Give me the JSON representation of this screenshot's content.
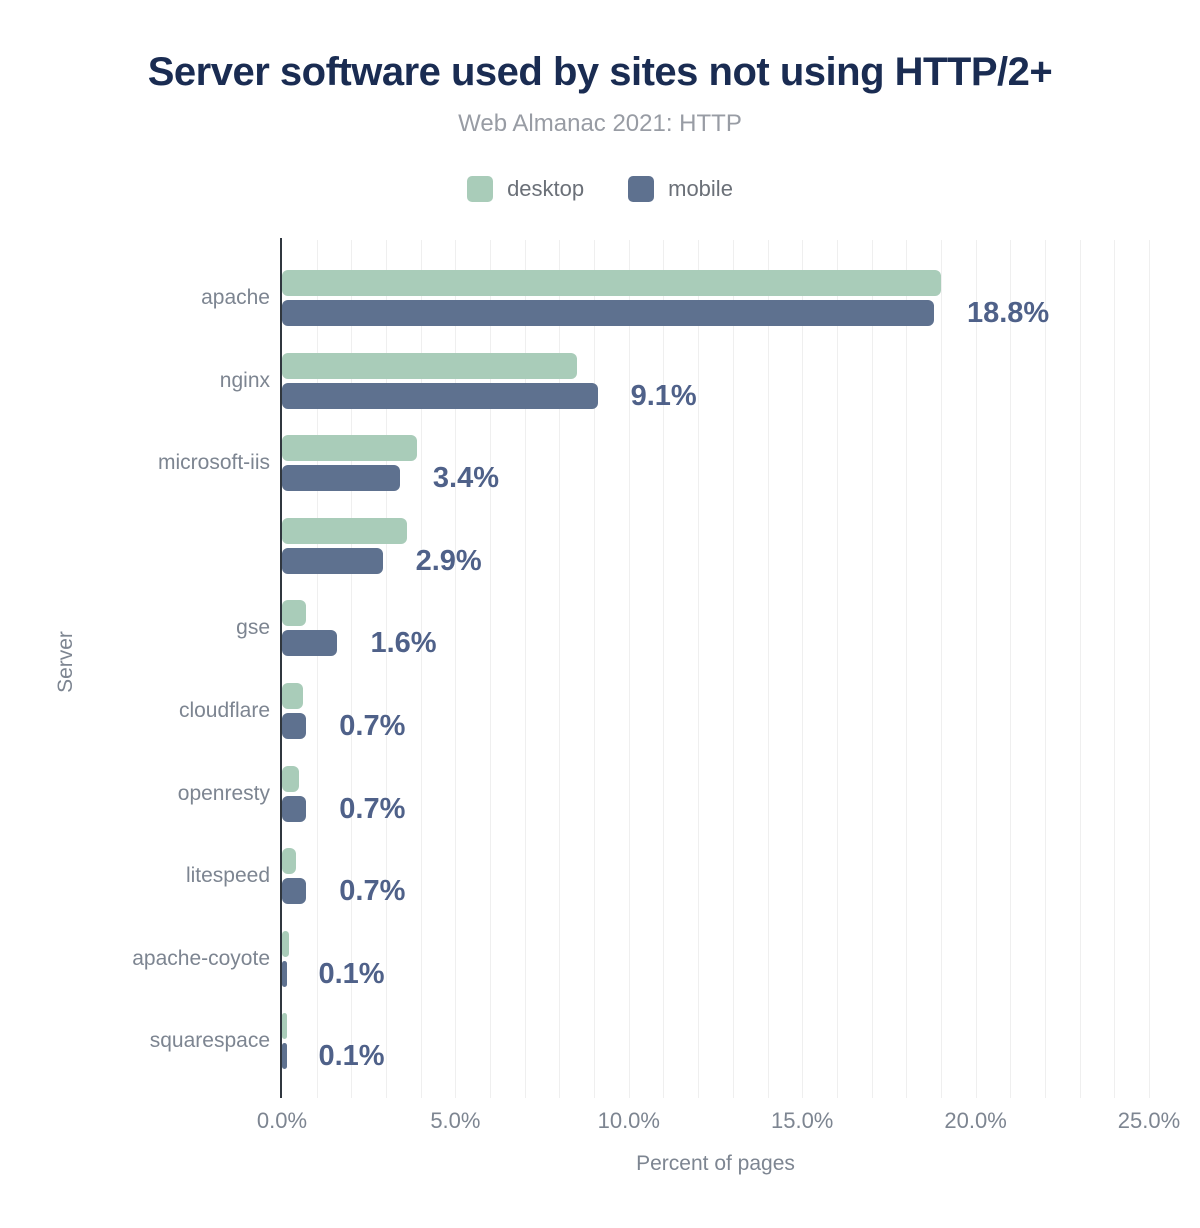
{
  "header": {
    "title": "Server software used by sites not using HTTP/2+",
    "subtitle": "Web Almanac 2021: HTTP"
  },
  "legend": [
    {
      "label": "desktop",
      "color": "#a9ccb9"
    },
    {
      "label": "mobile",
      "color": "#5e718f"
    }
  ],
  "chart_data": {
    "type": "bar",
    "orientation": "horizontal",
    "title": "Server software used by sites not using HTTP/2+",
    "subtitle": "Web Almanac 2021: HTTP",
    "xlabel": "Percent of pages",
    "ylabel": "Server",
    "xlim": [
      0,
      25
    ],
    "x_ticks": [
      "0.0%",
      "5.0%",
      "10.0%",
      "15.0%",
      "20.0%",
      "25.0%"
    ],
    "x_tick_values": [
      0,
      5,
      10,
      15,
      20,
      25
    ],
    "grid_step": 1,
    "grid": true,
    "legend_position": "top",
    "categories": [
      "apache",
      "nginx",
      "microsoft-iis",
      "",
      "gse",
      "cloudflare",
      "openresty",
      "litespeed",
      "apache-coyote",
      "squarespace"
    ],
    "series": [
      {
        "name": "desktop",
        "color": "#a9ccb9",
        "values": [
          19.0,
          8.5,
          3.9,
          3.6,
          0.7,
          0.6,
          0.5,
          0.4,
          0.2,
          0.1
        ]
      },
      {
        "name": "mobile",
        "color": "#5e718f",
        "values": [
          18.8,
          9.1,
          3.4,
          2.9,
          1.6,
          0.7,
          0.7,
          0.7,
          0.1,
          0.1
        ]
      }
    ],
    "value_labels": [
      "18.8%",
      "9.1%",
      "3.4%",
      "2.9%",
      "1.6%",
      "0.7%",
      "0.7%",
      "0.7%",
      "0.1%",
      "0.1%"
    ],
    "value_labels_series": "mobile"
  },
  "colors": {
    "title": "#1a2c52",
    "subtitle": "#989ca4",
    "legend_text": "#6b7078",
    "desktop_bar": "#a9ccb9",
    "mobile_bar": "#5e718f",
    "value_label": "#4f6189",
    "axis_text": "#7d8591",
    "gridline": "#efefef",
    "axis_line": "#30373f"
  }
}
